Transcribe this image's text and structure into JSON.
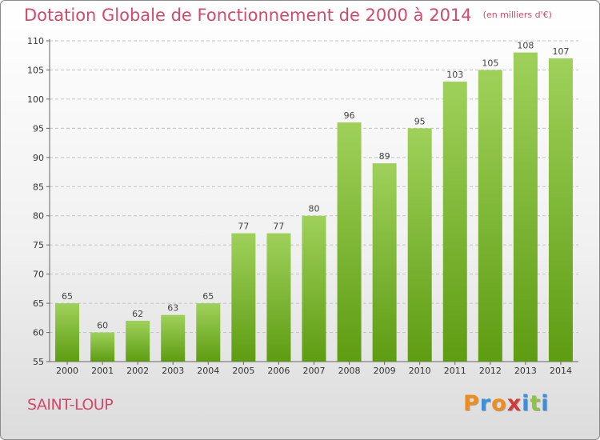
{
  "header": {
    "title": "Dotation Globale de Fonctionnement de 2000 à 2014",
    "unit_note": "(en milliers d'€)"
  },
  "footer": {
    "place": "SAINT-LOUP",
    "brand": "Proxiti"
  },
  "colors": {
    "title": "#d24a6a",
    "bar_light": "#9fd15a",
    "bar_dark": "#5e9c12",
    "logo_letters": [
      "#f08c1e",
      "#3b8fd8",
      "#f08c1e",
      "#d23a3a",
      "#3b8fd8",
      "#8cc63f",
      "#3b8fd8"
    ]
  },
  "chart_data": {
    "type": "bar",
    "title": "Dotation Globale de Fonctionnement de 2000 à 2014",
    "subtitle": "(en milliers d'€)",
    "xlabel": "",
    "ylabel": "",
    "categories": [
      "2000",
      "2001",
      "2002",
      "2003",
      "2004",
      "2005",
      "2006",
      "2007",
      "2008",
      "2009",
      "2010",
      "2011",
      "2012",
      "2013",
      "2014"
    ],
    "values": [
      65,
      60,
      62,
      63,
      65,
      77,
      77,
      80,
      96,
      89,
      95,
      103,
      105,
      108,
      107
    ],
    "data_labels": [
      "65",
      "60",
      "62",
      "63",
      "65",
      "77",
      "77",
      "80",
      "96",
      "89",
      "95",
      "103",
      "105",
      "108",
      "107"
    ],
    "ylim": [
      55,
      110
    ],
    "yticks": [
      55,
      60,
      65,
      70,
      75,
      80,
      85,
      90,
      95,
      100,
      105,
      110
    ],
    "grid": true,
    "legend": "none"
  }
}
